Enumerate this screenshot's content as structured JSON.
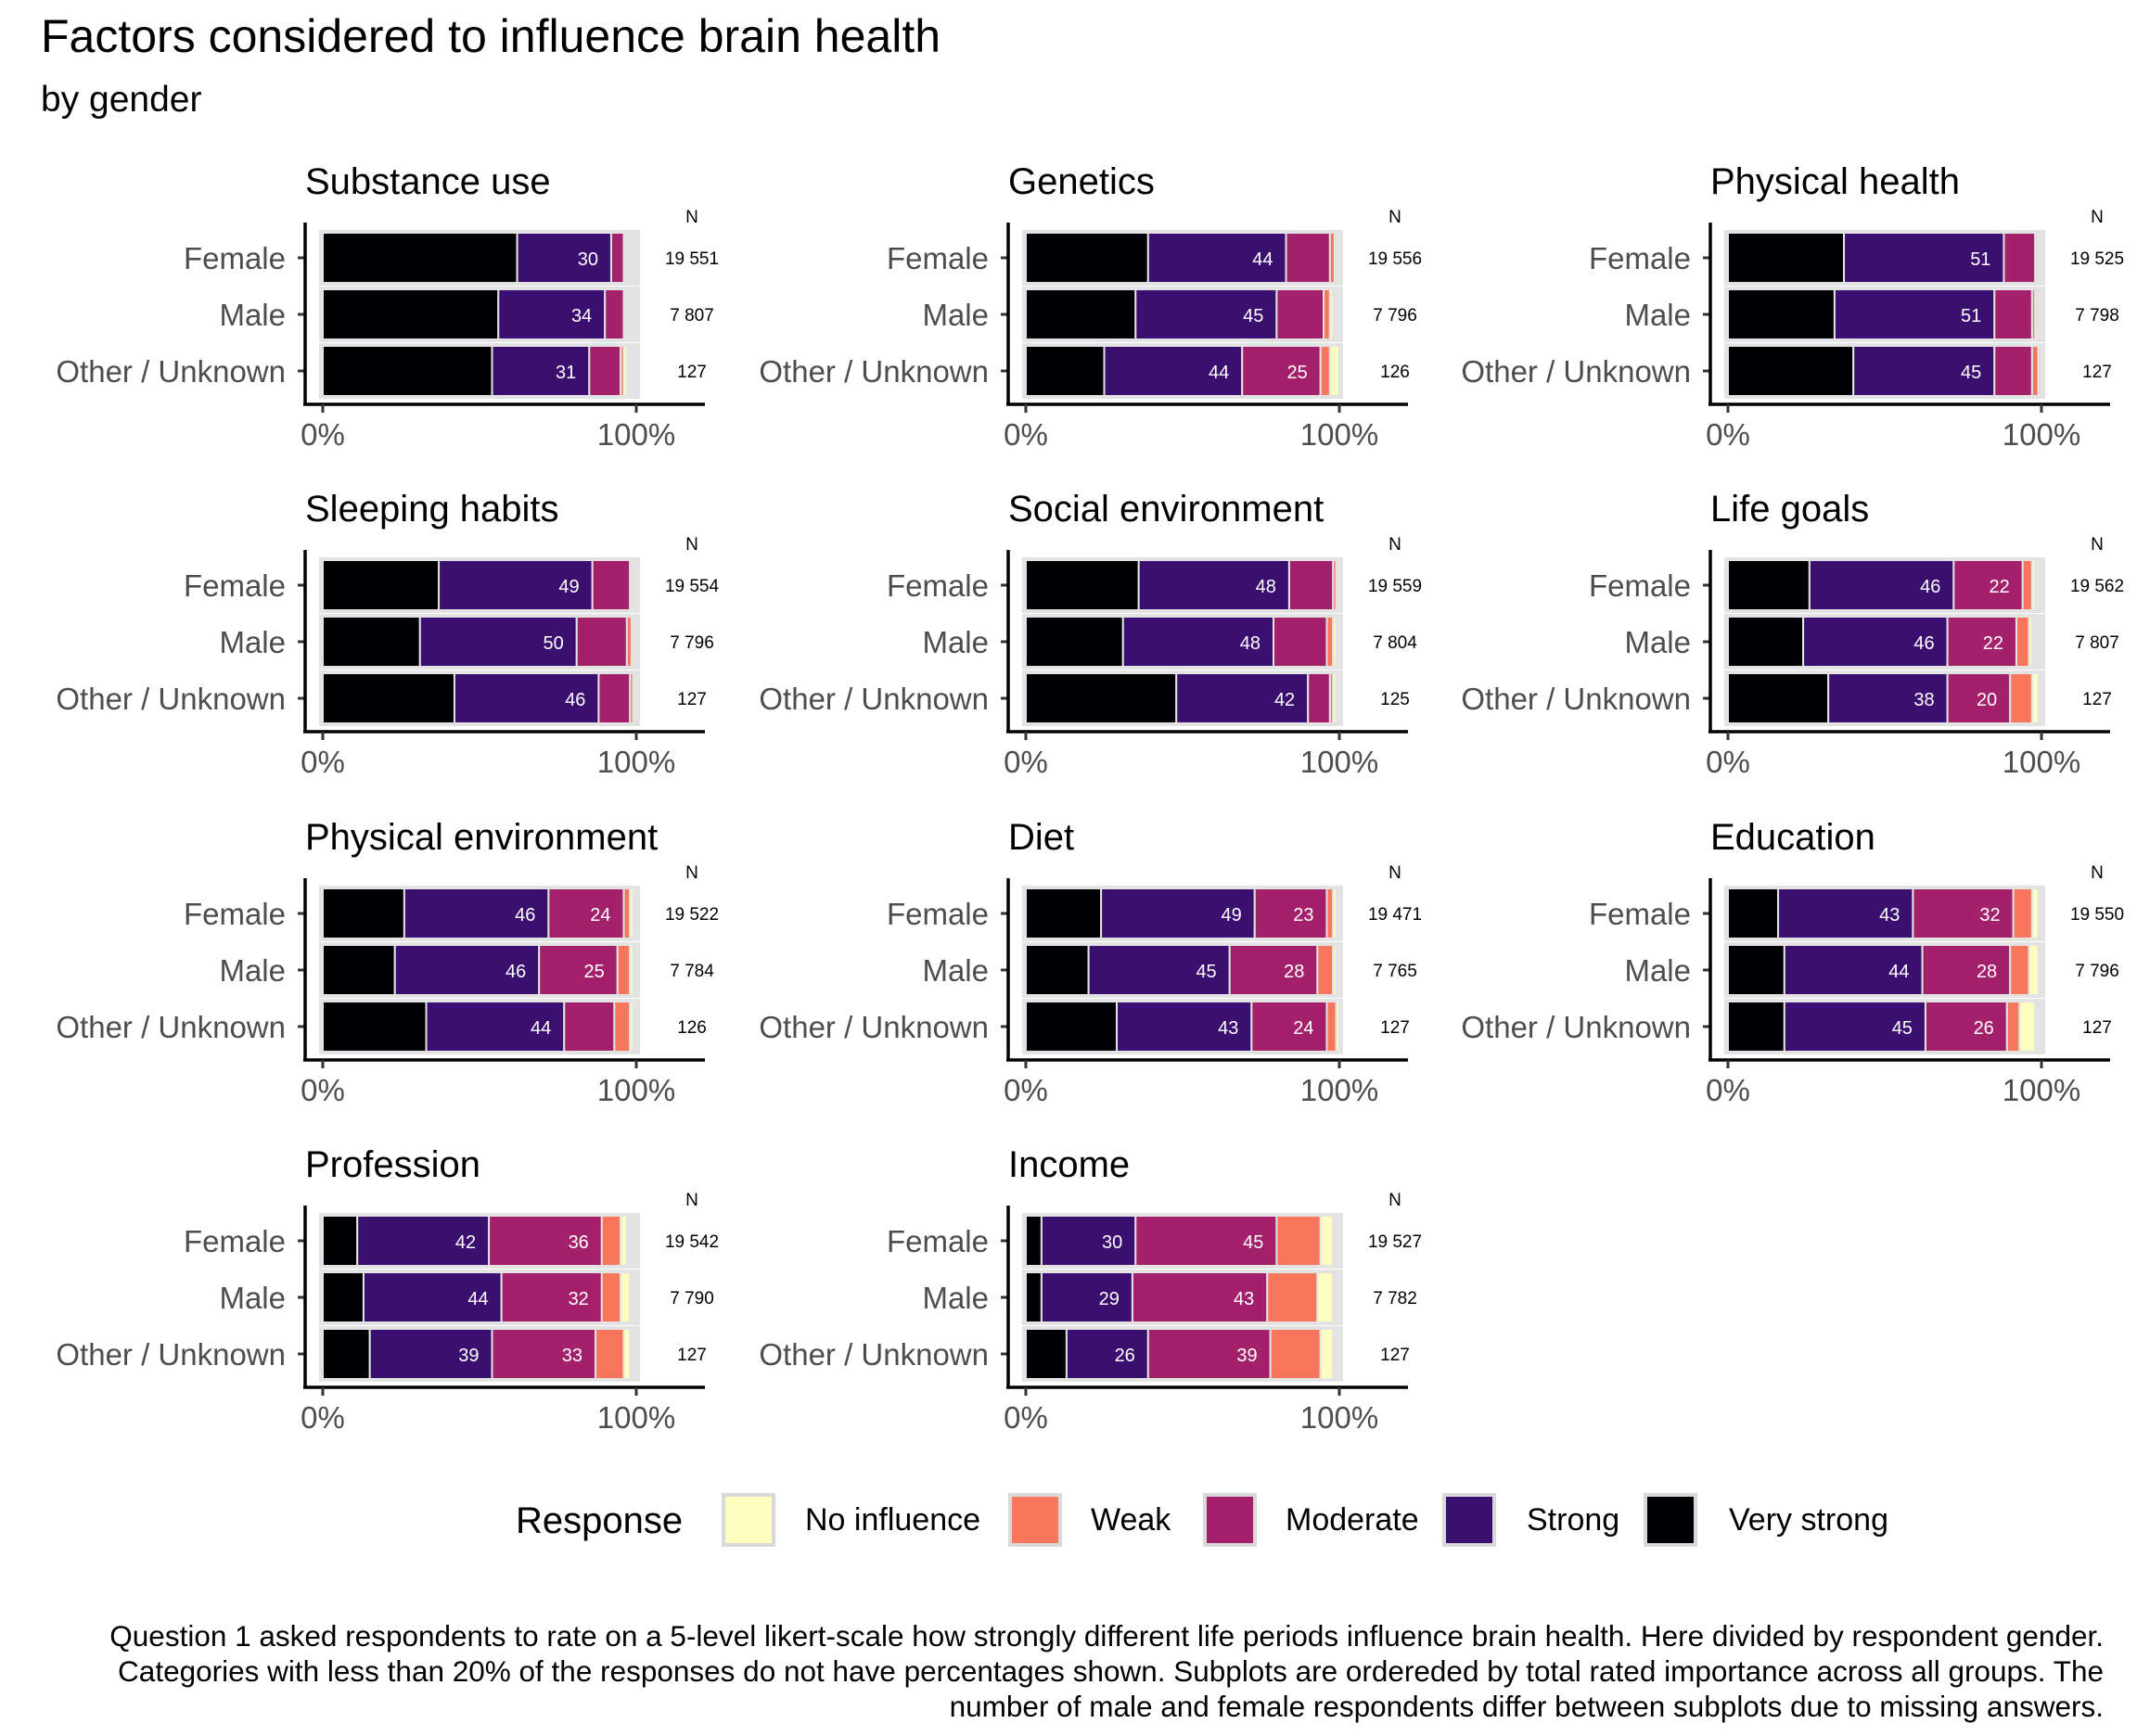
{
  "title": "Factors considered to influence brain health",
  "subtitle": "by gender",
  "caption": "Question 1 asked respondents to rate on a 5-level likert-scale how strongly different life periods influence brain health. Here divided by respondent gender. Categories with less than 20% of the responses do not have percentages shown. Subplots are ordereded by total rated importance across all groups. The number of male and female respondents differ between subplots due to missing answers.",
  "legend": {
    "title": "Response",
    "items": [
      {
        "label": "No influence",
        "color": "#fcfdbf"
      },
      {
        "label": "Weak",
        "color": "#f8765c"
      },
      {
        "label": "Moderate",
        "color": "#a3206a"
      },
      {
        "label": "Strong",
        "color": "#3b0f70"
      },
      {
        "label": "Very strong",
        "color": "#000004"
      }
    ]
  },
  "n_header": "N",
  "groups": [
    "Female",
    "Male",
    "Other / Unknown"
  ],
  "xticks": [
    "0%",
    "100%"
  ],
  "chart_data": {
    "type": "bar",
    "stacked": true,
    "orientation": "horizontal",
    "xlim": [
      0,
      100
    ],
    "categories_order": [
      "Very strong",
      "Strong",
      "Moderate",
      "Weak",
      "No influence"
    ],
    "label_threshold_percent": 20,
    "panels": [
      {
        "title": "Substance use",
        "rows": [
          {
            "group": "Female",
            "n": "19 551",
            "values": [
              62,
              30,
              4,
              0.6,
              0.4
            ]
          },
          {
            "group": "Male",
            "n": "7 807",
            "values": [
              56,
              34,
              6,
              0.6,
              0.4
            ]
          },
          {
            "group": "Other / Unknown",
            "n": "127",
            "values": [
              54,
              31,
              10,
              1,
              1
            ]
          }
        ]
      },
      {
        "title": "Genetics",
        "rows": [
          {
            "group": "Female",
            "n": "19 556",
            "values": [
              39,
              44,
              14,
              1.5,
              0.5
            ]
          },
          {
            "group": "Male",
            "n": "7 796",
            "values": [
              35,
              45,
              15,
              2,
              1
            ]
          },
          {
            "group": "Other / Unknown",
            "n": "126",
            "values": [
              25,
              44,
              25,
              3,
              3
            ]
          }
        ]
      },
      {
        "title": "Physical health",
        "rows": [
          {
            "group": "Female",
            "n": "19 525",
            "values": [
              37,
              51,
              10,
              0.6,
              0.4
            ]
          },
          {
            "group": "Male",
            "n": "7 798",
            "values": [
              34,
              51,
              12,
              1,
              0.5
            ]
          },
          {
            "group": "Other / Unknown",
            "n": "127",
            "values": [
              40,
              45,
              12,
              2,
              0.5
            ]
          }
        ]
      },
      {
        "title": "Sleeping habits",
        "rows": [
          {
            "group": "Female",
            "n": "19 554",
            "values": [
              37,
              49,
              12,
              0.6,
              0.4
            ]
          },
          {
            "group": "Male",
            "n": "7 796",
            "values": [
              31,
              50,
              16,
              1.5,
              0.5
            ]
          },
          {
            "group": "Other / Unknown",
            "n": "127",
            "values": [
              42,
              46,
              10,
              1,
              0.5
            ]
          }
        ]
      },
      {
        "title": "Social environment",
        "rows": [
          {
            "group": "Female",
            "n": "19 559",
            "values": [
              36,
              48,
              14,
              1,
              0.5
            ]
          },
          {
            "group": "Male",
            "n": "7 804",
            "values": [
              31,
              48,
              17,
              2,
              1
            ]
          },
          {
            "group": "Other / Unknown",
            "n": "125",
            "values": [
              48,
              42,
              7,
              1,
              1
            ]
          }
        ]
      },
      {
        "title": "Life goals",
        "rows": [
          {
            "group": "Female",
            "n": "19 562",
            "values": [
              26,
              46,
              22,
              3,
              1
            ]
          },
          {
            "group": "Male",
            "n": "7 807",
            "values": [
              24,
              46,
              22,
              4,
              1
            ]
          },
          {
            "group": "Other / Unknown",
            "n": "127",
            "values": [
              32,
              38,
              20,
              7,
              2
            ]
          }
        ]
      },
      {
        "title": "Physical environment",
        "rows": [
          {
            "group": "Female",
            "n": "19 522",
            "values": [
              26,
              46,
              24,
              2,
              1
            ]
          },
          {
            "group": "Male",
            "n": "7 784",
            "values": [
              23,
              46,
              25,
              4,
              1
            ]
          },
          {
            "group": "Other / Unknown",
            "n": "126",
            "values": [
              33,
              44,
              16,
              5,
              1
            ]
          }
        ]
      },
      {
        "title": "Diet",
        "rows": [
          {
            "group": "Female",
            "n": "19 471",
            "values": [
              24,
              49,
              23,
              2,
              1
            ]
          },
          {
            "group": "Male",
            "n": "7 765",
            "values": [
              20,
              45,
              28,
              5,
              1
            ]
          },
          {
            "group": "Other / Unknown",
            "n": "127",
            "values": [
              29,
              43,
              24,
              3,
              1
            ]
          }
        ]
      },
      {
        "title": "Education",
        "rows": [
          {
            "group": "Female",
            "n": "19 550",
            "values": [
              16,
              43,
              32,
              6,
              2
            ]
          },
          {
            "group": "Male",
            "n": "7 796",
            "values": [
              18,
              44,
              28,
              6,
              3
            ]
          },
          {
            "group": "Other / Unknown",
            "n": "127",
            "values": [
              18,
              45,
              26,
              4,
              5
            ]
          }
        ]
      },
      {
        "title": "Profession",
        "rows": [
          {
            "group": "Female",
            "n": "19 542",
            "values": [
              11,
              42,
              36,
              6,
              2
            ]
          },
          {
            "group": "Male",
            "n": "7 790",
            "values": [
              13,
              44,
              32,
              6,
              3
            ]
          },
          {
            "group": "Other / Unknown",
            "n": "127",
            "values": [
              15,
              39,
              33,
              9,
              2
            ]
          }
        ]
      },
      {
        "title": "Income",
        "rows": [
          {
            "group": "Female",
            "n": "19 527",
            "values": [
              5,
              30,
              45,
              14,
              4
            ]
          },
          {
            "group": "Male",
            "n": "7 782",
            "values": [
              5,
              29,
              43,
              16,
              5
            ]
          },
          {
            "group": "Other / Unknown",
            "n": "127",
            "values": [
              13,
              26,
              39,
              16,
              4
            ]
          }
        ]
      }
    ]
  }
}
